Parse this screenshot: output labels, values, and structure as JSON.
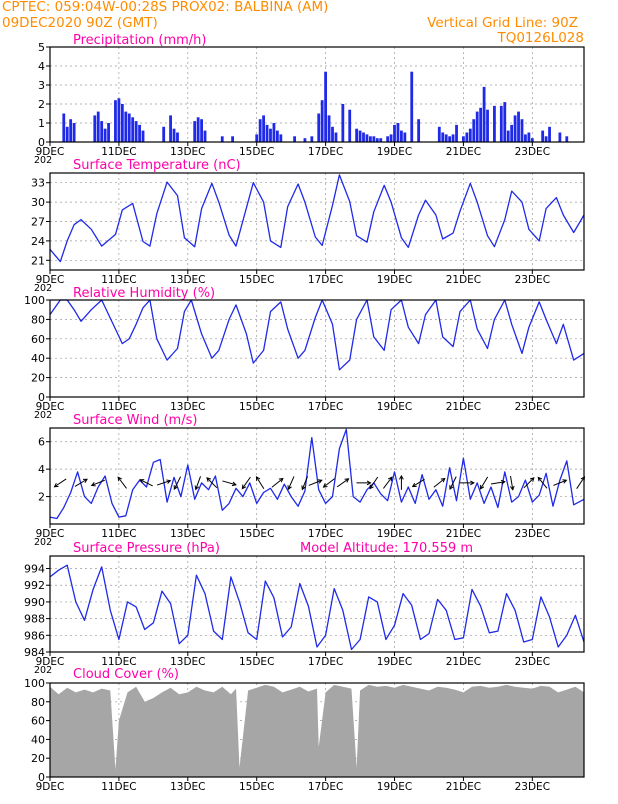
{
  "header": {
    "left_line1": "CPTEC:   059:04W-00:28S   PROX02: BALBINA (AM)",
    "left_line2": "09DEC2020 90Z (GMT)",
    "right_line1": "Vertical Grid Line: 90Z",
    "right_line2": "TQ0126L028",
    "cutoff_label": "202",
    "model_altitude": "Model Altitude: 170.559  m"
  },
  "colors": {
    "header": "#ff8c00",
    "panel_title": "#ff00aa",
    "series": "#1f2ae8",
    "cloud": "#a6a6a6",
    "grid": "#9a9a9a",
    "axis": "#000000"
  },
  "x_axis": {
    "tick_labels": [
      "9DEC",
      "11DEC",
      "13DEC",
      "15DEC",
      "17DEC",
      "19DEC",
      "21DEC",
      "23DEC"
    ],
    "start_day": 9,
    "end_day": 24.5,
    "labeled_days": [
      9,
      11,
      13,
      15,
      17,
      19,
      21,
      23
    ]
  },
  "chart_data": [
    {
      "id": "precip",
      "type": "bar",
      "title": "Precipitation  (mm/h)",
      "ylim": [
        0,
        5
      ],
      "yticks": [
        0,
        1,
        2,
        3,
        4,
        5
      ],
      "grid": true,
      "x_unit": "day of December 2020 (GMT)",
      "x": [
        9.4,
        9.5,
        9.6,
        9.7,
        10.3,
        10.4,
        10.5,
        10.6,
        10.7,
        10.9,
        11.0,
        11.1,
        11.2,
        11.3,
        11.4,
        11.5,
        11.6,
        11.7,
        12.3,
        12.5,
        12.6,
        12.7,
        13.2,
        13.3,
        13.4,
        13.5,
        14.0,
        14.3,
        15.0,
        15.1,
        15.2,
        15.3,
        15.4,
        15.5,
        15.6,
        15.7,
        16.1,
        16.4,
        16.6,
        16.8,
        16.9,
        17.0,
        17.1,
        17.2,
        17.3,
        17.5,
        17.7,
        17.9,
        18.0,
        18.1,
        18.2,
        18.3,
        18.4,
        18.5,
        18.6,
        18.8,
        18.9,
        19.0,
        19.1,
        19.2,
        19.3,
        19.5,
        19.7,
        20.3,
        20.4,
        20.5,
        20.6,
        20.7,
        20.8,
        21.0,
        21.1,
        21.2,
        21.3,
        21.4,
        21.5,
        21.6,
        21.7,
        21.9,
        22.1,
        22.2,
        22.3,
        22.4,
        22.5,
        22.6,
        22.7,
        22.8,
        22.9,
        23.0,
        23.3,
        23.4,
        23.5,
        23.8,
        24.0
      ],
      "values": [
        1.5,
        0.8,
        1.2,
        1.0,
        1.4,
        1.6,
        1.1,
        0.7,
        1.0,
        2.2,
        2.3,
        2.0,
        1.6,
        1.5,
        1.3,
        1.1,
        0.9,
        0.6,
        0.8,
        1.4,
        0.7,
        0.5,
        1.1,
        1.3,
        1.2,
        0.6,
        0.3,
        0.3,
        0.4,
        1.2,
        1.4,
        0.9,
        0.7,
        1.0,
        0.6,
        0.4,
        0.3,
        0.2,
        0.3,
        1.5,
        2.2,
        3.7,
        1.4,
        0.8,
        0.5,
        2.0,
        1.7,
        0.7,
        0.6,
        0.5,
        0.4,
        0.3,
        0.3,
        0.2,
        0.2,
        0.3,
        0.4,
        0.9,
        1.0,
        0.6,
        0.5,
        3.7,
        1.2,
        0.8,
        0.5,
        0.4,
        0.3,
        0.4,
        0.9,
        0.3,
        0.5,
        0.7,
        1.2,
        1.6,
        1.8,
        2.9,
        1.7,
        1.9,
        1.9,
        2.1,
        0.6,
        0.9,
        1.4,
        1.6,
        1.2,
        0.4,
        0.5,
        0.2,
        0.6,
        0.3,
        0.8,
        0.5,
        0.3
      ]
    },
    {
      "id": "temp",
      "type": "line",
      "title": "Surface Temperature  (nC)",
      "ylim": [
        19.5,
        34.5
      ],
      "yticks": [
        21,
        24,
        27,
        30,
        33
      ],
      "grid": true,
      "x_unit": "day of December 2020 (GMT)",
      "x": [
        9.0,
        9.3,
        9.5,
        9.7,
        9.9,
        10.2,
        10.5,
        10.9,
        11.1,
        11.4,
        11.7,
        11.9,
        12.1,
        12.4,
        12.7,
        12.9,
        13.2,
        13.4,
        13.7,
        13.9,
        14.2,
        14.4,
        14.7,
        14.9,
        15.2,
        15.4,
        15.7,
        15.9,
        16.2,
        16.4,
        16.7,
        16.9,
        17.2,
        17.4,
        17.7,
        17.9,
        18.2,
        18.4,
        18.7,
        18.9,
        19.2,
        19.4,
        19.7,
        19.9,
        20.2,
        20.4,
        20.7,
        20.9,
        21.2,
        21.4,
        21.7,
        21.9,
        22.2,
        22.4,
        22.7,
        22.9,
        23.2,
        23.4,
        23.7,
        23.9,
        24.2,
        24.5
      ],
      "values": [
        22.7,
        20.8,
        24.0,
        26.5,
        27.3,
        25.8,
        23.2,
        25.0,
        28.8,
        29.8,
        23.9,
        23.2,
        28.2,
        33.1,
        31.0,
        24.5,
        23.1,
        29.0,
        32.9,
        30.0,
        24.9,
        23.2,
        29.1,
        33.0,
        30.0,
        24.0,
        23.0,
        29.3,
        32.8,
        30.0,
        24.6,
        23.3,
        29.5,
        34.2,
        30.1,
        24.8,
        23.8,
        28.5,
        32.6,
        30.0,
        24.5,
        23.0,
        28.0,
        30.3,
        28.0,
        24.3,
        25.2,
        28.6,
        32.9,
        30.0,
        24.8,
        23.1,
        27.3,
        31.7,
        30.0,
        25.8,
        24.0,
        29.0,
        30.7,
        28.0,
        25.3,
        28.0
      ]
    },
    {
      "id": "rh",
      "type": "line",
      "title": "Relative Humidity  (%)",
      "ylim": [
        0,
        100
      ],
      "yticks": [
        0,
        20,
        40,
        60,
        80,
        100
      ],
      "grid": true,
      "x_unit": "day of December 2020 (GMT)",
      "x": [
        9.0,
        9.3,
        9.5,
        9.7,
        9.9,
        10.2,
        10.5,
        10.7,
        10.9,
        11.1,
        11.3,
        11.5,
        11.7,
        11.9,
        12.1,
        12.4,
        12.7,
        12.9,
        13.1,
        13.4,
        13.7,
        13.9,
        14.2,
        14.4,
        14.7,
        14.9,
        15.2,
        15.4,
        15.7,
        15.9,
        16.2,
        16.4,
        16.7,
        16.9,
        17.2,
        17.4,
        17.7,
        17.9,
        18.2,
        18.4,
        18.7,
        18.9,
        19.2,
        19.4,
        19.7,
        19.9,
        20.2,
        20.4,
        20.7,
        20.9,
        21.2,
        21.4,
        21.7,
        21.9,
        22.2,
        22.4,
        22.7,
        22.9,
        23.2,
        23.4,
        23.7,
        23.9,
        24.2,
        24.5
      ],
      "values": [
        85,
        100,
        100,
        90,
        78,
        90,
        100,
        85,
        70,
        55,
        60,
        75,
        92,
        100,
        60,
        38,
        50,
        88,
        100,
        65,
        40,
        48,
        80,
        95,
        65,
        35,
        48,
        88,
        98,
        70,
        40,
        48,
        82,
        100,
        75,
        28,
        38,
        80,
        100,
        62,
        48,
        90,
        100,
        72,
        55,
        85,
        100,
        62,
        52,
        88,
        100,
        70,
        50,
        80,
        100,
        75,
        45,
        72,
        98,
        80,
        55,
        75,
        38,
        45
      ]
    },
    {
      "id": "wind",
      "type": "line",
      "title": "Surface Wind  (m/s)",
      "ylim": [
        0,
        7
      ],
      "yticks": [
        2,
        4,
        6
      ],
      "grid": true,
      "x_unit": "day of December 2020 (GMT)",
      "x": [
        9.0,
        9.2,
        9.4,
        9.6,
        9.8,
        10.0,
        10.2,
        10.4,
        10.6,
        10.8,
        11.0,
        11.2,
        11.4,
        11.6,
        11.8,
        12.0,
        12.2,
        12.4,
        12.6,
        12.8,
        13.0,
        13.2,
        13.4,
        13.6,
        13.8,
        14.0,
        14.2,
        14.4,
        14.6,
        14.8,
        15.0,
        15.2,
        15.4,
        15.6,
        15.8,
        16.0,
        16.2,
        16.4,
        16.6,
        16.8,
        17.0,
        17.2,
        17.4,
        17.6,
        17.8,
        18.0,
        18.2,
        18.4,
        18.6,
        18.8,
        19.0,
        19.2,
        19.4,
        19.6,
        19.8,
        20.0,
        20.2,
        20.4,
        20.6,
        20.8,
        21.0,
        21.2,
        21.4,
        21.6,
        21.8,
        22.0,
        22.2,
        22.4,
        22.6,
        22.8,
        23.0,
        23.2,
        23.4,
        23.6,
        23.8,
        24.0,
        24.2,
        24.5
      ],
      "values": [
        0.5,
        0.4,
        1.2,
        2.3,
        3.8,
        2.0,
        1.5,
        2.7,
        3.5,
        1.5,
        0.5,
        0.6,
        2.5,
        3.2,
        2.7,
        4.5,
        4.7,
        1.6,
        3.4,
        2.0,
        4.3,
        1.8,
        3.0,
        2.5,
        3.5,
        1.0,
        1.5,
        2.6,
        2.0,
        3.0,
        1.5,
        2.3,
        2.6,
        1.8,
        2.9,
        2.0,
        1.3,
        2.4,
        6.3,
        2.5,
        1.5,
        2.0,
        5.5,
        6.9,
        2.0,
        1.6,
        2.5,
        3.0,
        2.2,
        1.7,
        3.8,
        1.6,
        2.7,
        1.5,
        3.6,
        1.8,
        2.5,
        1.3,
        4.1,
        1.7,
        4.8,
        1.8,
        3.0,
        1.5,
        2.7,
        1.2,
        3.8,
        1.6,
        2.0,
        3.2,
        1.6,
        2.1,
        3.7,
        1.3,
        3.2,
        4.6,
        1.4,
        1.8
      ],
      "arrows": {
        "x": [
          9.3,
          9.9,
          10.4,
          11.1,
          11.8,
          12.3,
          12.7,
          13.3,
          13.7,
          14.2,
          14.7,
          15.1,
          15.6,
          16.0,
          16.4,
          16.7,
          17.1,
          17.5,
          18.1,
          18.4,
          18.8,
          19.2,
          19.7,
          20.3,
          20.7,
          21.1,
          21.6,
          22.0,
          22.4,
          22.9,
          23.3,
          23.8,
          24.4
        ],
        "u": [
          -1.5,
          1.0,
          -1.0,
          -0.6,
          -1.0,
          1.2,
          -0.5,
          -0.4,
          -1.0,
          1.4,
          -0.7,
          -0.5,
          1.0,
          -0.4,
          -0.4,
          1.5,
          -1.3,
          1.0,
          1.2,
          -0.8,
          0.6,
          0.0,
          -1.6,
          1.0,
          -0.5,
          1.2,
          -0.6,
          1.2,
          0.2,
          0.8,
          -0.8,
          1.0,
          0.4
        ],
        "v": [
          -1.0,
          0.6,
          -0.4,
          0.8,
          0.5,
          0.4,
          -1.0,
          -1.1,
          1.0,
          -0.4,
          -1.0,
          0.8,
          0.8,
          -0.9,
          -1.0,
          0.6,
          -1.0,
          0.7,
          0.0,
          -1.2,
          0.8,
          1.5,
          -1.0,
          0.8,
          -1.0,
          0.0,
          -1.0,
          0.2,
          -1.2,
          0.8,
          1.0,
          0.4,
          0.6
        ]
      }
    },
    {
      "id": "pres",
      "type": "line",
      "title": "Surface Pressure  (hPa)",
      "ylim": [
        984,
        995.5
      ],
      "yticks": [
        984,
        986,
        988,
        990,
        992,
        994
      ],
      "grid": true,
      "x_unit": "day of December 2020 (GMT)",
      "x": [
        9.0,
        9.25,
        9.5,
        9.75,
        10.0,
        10.25,
        10.5,
        10.75,
        11.0,
        11.25,
        11.5,
        11.75,
        12.0,
        12.25,
        12.5,
        12.75,
        13.0,
        13.25,
        13.5,
        13.75,
        14.0,
        14.25,
        14.5,
        14.75,
        15.0,
        15.25,
        15.5,
        15.75,
        16.0,
        16.25,
        16.5,
        16.75,
        17.0,
        17.25,
        17.5,
        17.75,
        18.0,
        18.25,
        18.5,
        18.75,
        19.0,
        19.25,
        19.5,
        19.75,
        20.0,
        20.25,
        20.5,
        20.75,
        21.0,
        21.25,
        21.5,
        21.75,
        22.0,
        22.25,
        22.5,
        22.75,
        23.0,
        23.25,
        23.5,
        23.75,
        24.0,
        24.25,
        24.5
      ],
      "values": [
        993.0,
        993.8,
        994.4,
        990.0,
        987.8,
        991.5,
        994.2,
        989.0,
        985.5,
        990.0,
        989.4,
        986.7,
        987.5,
        991.3,
        989.8,
        985.0,
        986.0,
        993.2,
        991.0,
        986.5,
        985.5,
        993.0,
        990.0,
        986.3,
        985.5,
        992.5,
        990.5,
        985.8,
        987.0,
        992.2,
        989.5,
        984.6,
        986.0,
        991.6,
        989.0,
        984.3,
        985.5,
        990.6,
        990.0,
        985.5,
        987.2,
        991.0,
        989.6,
        985.5,
        986.2,
        990.3,
        989.0,
        985.5,
        985.7,
        991.5,
        989.5,
        986.3,
        986.5,
        991.0,
        989.0,
        985.2,
        985.5,
        990.6,
        988.2,
        984.6,
        986.0,
        988.4,
        985.2
      ]
    },
    {
      "id": "cloud",
      "type": "area",
      "title": "Cloud Cover  (%)",
      "ylim": [
        0,
        100
      ],
      "yticks": [
        0,
        20,
        40,
        60,
        80,
        100
      ],
      "grid": true,
      "x_unit": "day of December 2020 (GMT)",
      "x": [
        9.0,
        9.25,
        9.5,
        9.75,
        10.0,
        10.25,
        10.5,
        10.75,
        10.9,
        11.0,
        11.25,
        11.5,
        11.75,
        12.0,
        12.25,
        12.5,
        12.75,
        13.0,
        13.25,
        13.5,
        13.75,
        14.0,
        14.25,
        14.4,
        14.5,
        14.75,
        15.0,
        15.25,
        15.5,
        15.75,
        16.0,
        16.25,
        16.5,
        16.75,
        16.8,
        17.0,
        17.25,
        17.5,
        17.75,
        17.9,
        18.0,
        18.25,
        18.5,
        18.75,
        19.0,
        19.25,
        19.5,
        19.75,
        20.0,
        20.25,
        20.5,
        20.75,
        21.0,
        21.25,
        21.5,
        21.75,
        22.0,
        22.25,
        22.5,
        22.75,
        23.0,
        23.25,
        23.5,
        23.75,
        24.0,
        24.25,
        24.5
      ],
      "values": [
        96,
        88,
        95,
        90,
        93,
        90,
        94,
        92,
        8,
        60,
        90,
        96,
        80,
        84,
        90,
        95,
        88,
        90,
        96,
        92,
        90,
        96,
        88,
        94,
        10,
        92,
        95,
        98,
        96,
        90,
        93,
        96,
        91,
        94,
        32,
        90,
        98,
        96,
        94,
        10,
        92,
        98,
        96,
        97,
        95,
        98,
        96,
        94,
        92,
        96,
        95,
        93,
        90,
        96,
        97,
        95,
        96,
        98,
        96,
        95,
        94,
        97,
        96,
        90,
        93,
        96,
        90
      ]
    }
  ]
}
